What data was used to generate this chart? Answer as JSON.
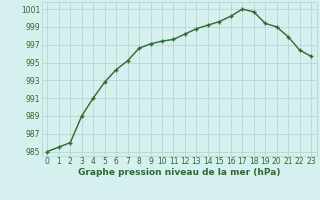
{
  "x": [
    0,
    1,
    2,
    3,
    4,
    5,
    6,
    7,
    8,
    9,
    10,
    11,
    12,
    13,
    14,
    15,
    16,
    17,
    18,
    19,
    20,
    21,
    22,
    23
  ],
  "y": [
    985.0,
    985.5,
    986.0,
    989.0,
    991.0,
    992.8,
    994.2,
    995.2,
    996.6,
    997.1,
    997.4,
    997.6,
    998.2,
    998.8,
    999.2,
    999.6,
    1000.2,
    1001.0,
    1000.7,
    999.4,
    999.0,
    997.9,
    996.4,
    995.7
  ],
  "line_color": "#2d6a2d",
  "marker": "+",
  "marker_size": 3,
  "marker_edge_width": 1.0,
  "background_color": "#d6f0ef",
  "grid_color": "#aed4d0",
  "xlabel": "Graphe pression niveau de la mer (hPa)",
  "xlabel_fontsize": 6.5,
  "yticks": [
    985,
    987,
    989,
    991,
    993,
    995,
    997,
    999,
    1001
  ],
  "xticks": [
    0,
    1,
    2,
    3,
    4,
    5,
    6,
    7,
    8,
    9,
    10,
    11,
    12,
    13,
    14,
    15,
    16,
    17,
    18,
    19,
    20,
    21,
    22,
    23
  ],
  "ylim": [
    984.5,
    1001.8
  ],
  "xlim": [
    -0.5,
    23.5
  ],
  "tick_fontsize": 5.5,
  "line_width": 1.0
}
